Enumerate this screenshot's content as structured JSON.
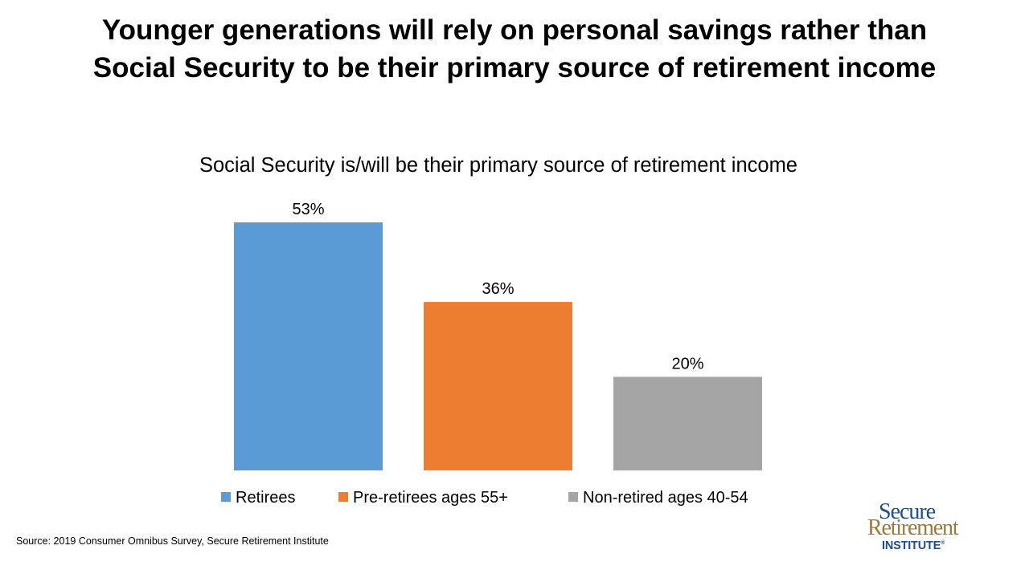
{
  "title": {
    "line1": "Younger generations will rely on personal savings rather than",
    "line2": "Social Security to be their primary source of retirement income"
  },
  "chart_data": {
    "type": "bar",
    "title": "Social Security is/will be their primary source of retirement income",
    "categories": [
      "Retirees",
      "Pre-retirees ages 55+",
      "Non-retired ages 40-54"
    ],
    "values": [
      53,
      36,
      20
    ],
    "labels": [
      "53%",
      "36%",
      "20%"
    ],
    "unit": "%",
    "colors": [
      "#5b9bd5",
      "#ed7d31",
      "#a5a5a5"
    ],
    "legend_position": "bottom",
    "grid": false,
    "y_axis_visible": false
  },
  "source": "Source: 2019 Consumer Omnibus Survey, Secure Retirement Institute",
  "logo": {
    "line1": "Secure",
    "line2": "Retirement",
    "line3": "INSTITUTE",
    "mark": "®"
  }
}
